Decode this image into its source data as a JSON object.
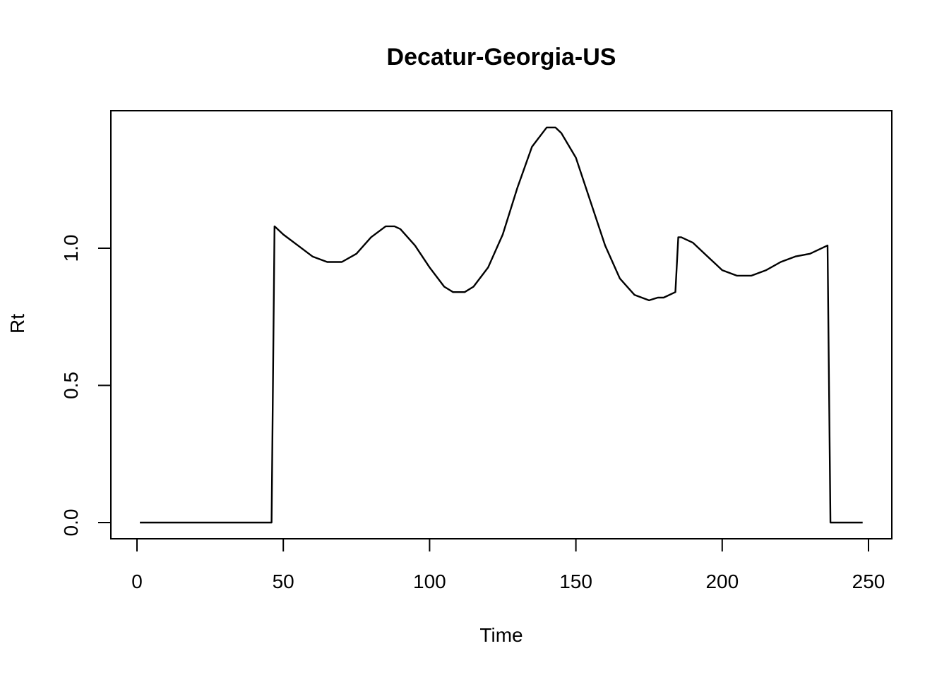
{
  "chart_data": {
    "type": "line",
    "title": "Decatur-Georgia-US",
    "xlabel": "Time",
    "ylabel": "Rt",
    "xlim": [
      0,
      250
    ],
    "ylim": [
      0,
      1.45
    ],
    "x_ticks": [
      0,
      50,
      100,
      150,
      200,
      250
    ],
    "x_tick_labels": [
      "0",
      "50",
      "100",
      "150",
      "200",
      "250"
    ],
    "y_ticks": [
      0.0,
      0.5,
      1.0
    ],
    "y_tick_labels": [
      "0.0",
      "0.5",
      "1.0"
    ],
    "grid": false,
    "legend": "none",
    "line_color": "#000000",
    "series": [
      {
        "x": [
          1,
          46,
          47,
          50,
          55,
          60,
          65,
          70,
          75,
          80,
          85,
          88,
          90,
          95,
          100,
          105,
          108,
          110,
          112,
          115,
          120,
          125,
          130,
          135,
          140,
          143,
          145,
          150,
          155,
          160,
          165,
          170,
          175,
          178,
          180,
          184,
          185,
          186,
          190,
          195,
          200,
          205,
          210,
          215,
          220,
          225,
          230,
          236,
          237,
          248
        ],
        "y": [
          0.0,
          0.0,
          1.08,
          1.05,
          1.01,
          0.97,
          0.95,
          0.95,
          0.98,
          1.04,
          1.08,
          1.08,
          1.07,
          1.01,
          0.93,
          0.86,
          0.84,
          0.84,
          0.84,
          0.86,
          0.93,
          1.05,
          1.22,
          1.37,
          1.44,
          1.44,
          1.42,
          1.33,
          1.17,
          1.01,
          0.89,
          0.83,
          0.81,
          0.82,
          0.82,
          0.84,
          1.04,
          1.04,
          1.02,
          0.97,
          0.92,
          0.9,
          0.9,
          0.92,
          0.95,
          0.97,
          0.98,
          1.01,
          0.0,
          0.0
        ]
      }
    ]
  }
}
